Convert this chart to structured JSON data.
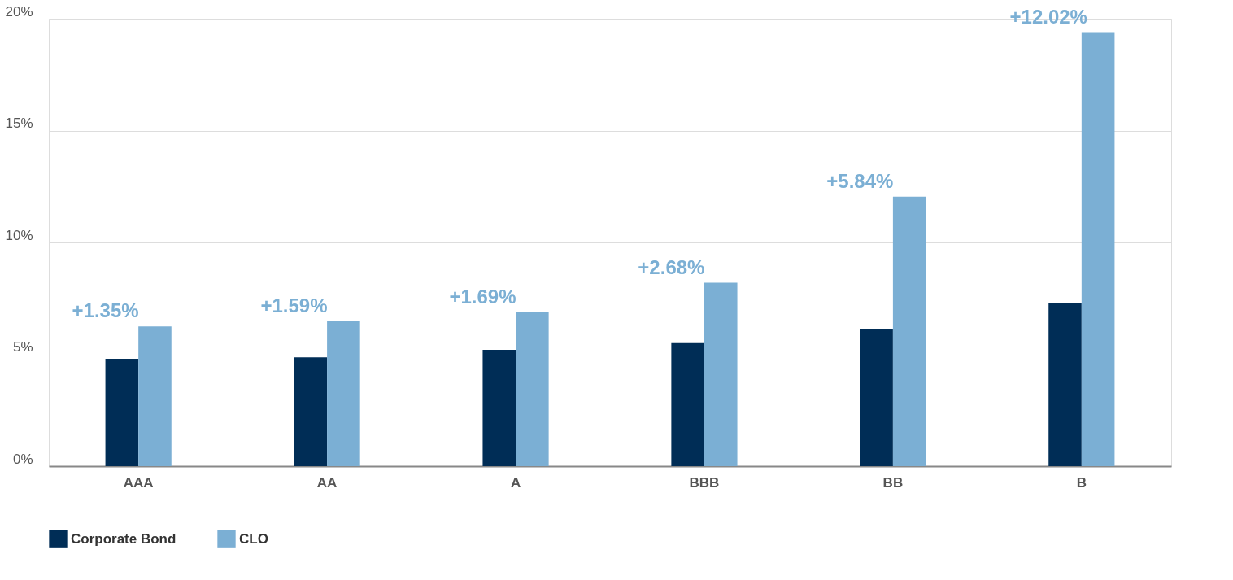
{
  "chart_data": {
    "type": "bar",
    "categories": [
      "AAA",
      "AA",
      "A",
      "BBB",
      "BB",
      "B"
    ],
    "series": [
      {
        "name": "Corporate Bond",
        "color": "#002d56",
        "values": [
          4.8,
          4.86,
          5.2,
          5.5,
          6.15,
          7.3
        ]
      },
      {
        "name": "CLO",
        "color": "#7bafd4",
        "values": [
          6.25,
          6.47,
          6.87,
          8.2,
          12.05,
          19.4
        ]
      }
    ],
    "ylim": [
      0,
      20
    ],
    "yticks": [
      {
        "value": 0,
        "label": "0%"
      },
      {
        "value": 5,
        "label": "5%"
      },
      {
        "value": 10,
        "label": "10%"
      },
      {
        "value": 15,
        "label": "15%"
      },
      {
        "value": 20,
        "label": "20%"
      }
    ],
    "annotations": [
      {
        "text": "+1.35%",
        "x": "AAA",
        "y": 6.25
      },
      {
        "text": "+1.59%",
        "x": "AA",
        "y": 6.47
      },
      {
        "text": "+1.69%",
        "x": "A",
        "y": 6.87
      },
      {
        "text": "+2.68%",
        "x": "BBB",
        "y": 8.2
      },
      {
        "text": "+5.84%",
        "x": "BB",
        "y": 12.05
      },
      {
        "text": "+12.02%",
        "x": "B",
        "y": 19.4
      }
    ],
    "grid": "y",
    "legend": "bottom left"
  }
}
